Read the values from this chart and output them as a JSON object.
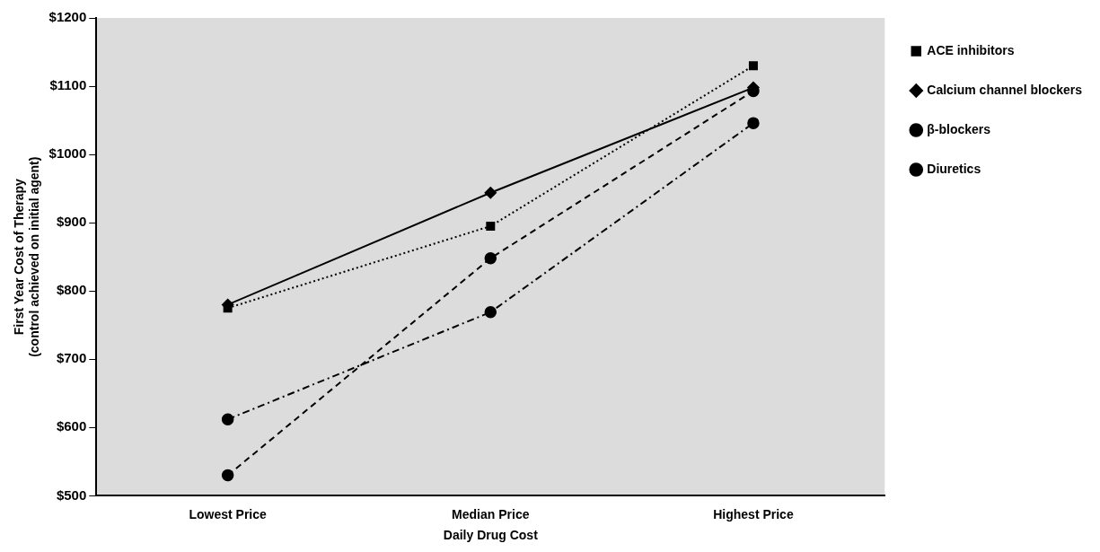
{
  "chart_data": {
    "type": "line",
    "xlabel": "Daily Drug Cost",
    "ylabel": "First Year Cost of Therapy\n(control achieved on initial agent)",
    "categories": [
      "Lowest Price",
      "Median Price",
      "Highest Price"
    ],
    "series": [
      {
        "name": "ACE inhibitors",
        "color": "#000000",
        "values": [
          775,
          895,
          1130
        ],
        "marker": "square",
        "line_style": "dotted"
      },
      {
        "name": "Calcium channel blockers",
        "color": "#000000",
        "values": [
          780,
          944,
          1098
        ],
        "marker": "diamond",
        "line_style": "solid"
      },
      {
        "name": "β-blockers",
        "color": "#000000",
        "values": [
          530,
          848,
          1093
        ],
        "marker": "circle",
        "line_style": "dashed"
      },
      {
        "name": "Diuretics",
        "color": "#000000",
        "values": [
          612,
          769,
          1046
        ],
        "marker": "circle",
        "line_style": "dashdot"
      }
    ],
    "ylim": [
      500,
      1200
    ],
    "yticks": [
      {
        "value": 500,
        "label": "$500"
      },
      {
        "value": 600,
        "label": "$600"
      },
      {
        "value": 700,
        "label": "$700"
      },
      {
        "value": 800,
        "label": "$800"
      },
      {
        "value": 900,
        "label": "$900"
      },
      {
        "value": 1000,
        "label": "$1000"
      },
      {
        "value": 1100,
        "label": "$1100"
      },
      {
        "value": 1200,
        "label": "$1200"
      }
    ],
    "grid": false,
    "legend": "right"
  }
}
